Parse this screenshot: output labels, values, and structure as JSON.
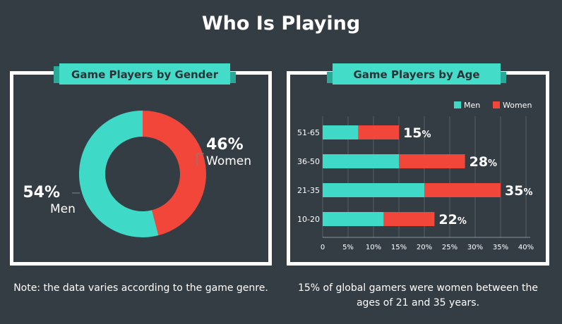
{
  "page": {
    "title": "Who Is Playing",
    "left_panel_title": "Game Players by Gender",
    "right_panel_title": "Game Players by Age",
    "left_note": "Note: the data varies according to the game genre.",
    "right_note": "15% of global gamers were women between the ages of 21 and 35 years."
  },
  "colors": {
    "background": "#353d44",
    "men": "#3fd9c8",
    "women": "#f2463a",
    "ribbon": "#43dcc8",
    "panel_border": "#ffffff"
  },
  "chart_data": [
    {
      "type": "pie",
      "title": "Game Players by Gender",
      "donut": true,
      "slices": [
        {
          "name": "Women",
          "value": 46,
          "label": "46%",
          "color": "#f2463a"
        },
        {
          "name": "Men",
          "value": 54,
          "label": "54%",
          "color": "#3fd9c8"
        }
      ]
    },
    {
      "type": "bar",
      "orientation": "horizontal",
      "stacked": true,
      "title": "Game Players by Age",
      "categories": [
        "51-65",
        "36-50",
        "21-35",
        "10-20"
      ],
      "series": [
        {
          "name": "Men",
          "values": [
            7,
            15,
            20,
            12
          ],
          "color": "#3fd9c8"
        },
        {
          "name": "Women",
          "values": [
            8,
            13,
            15,
            10
          ],
          "color": "#f2463a"
        }
      ],
      "data_labels": [
        "15%",
        "28%",
        "35%",
        "22%"
      ],
      "xlim": [
        0,
        40
      ],
      "x_ticks": [
        "0",
        "5%",
        "10%",
        "15%",
        "20%",
        "25%",
        "30%",
        "35%",
        "40%"
      ],
      "grid": true,
      "legend": "top-right"
    }
  ]
}
